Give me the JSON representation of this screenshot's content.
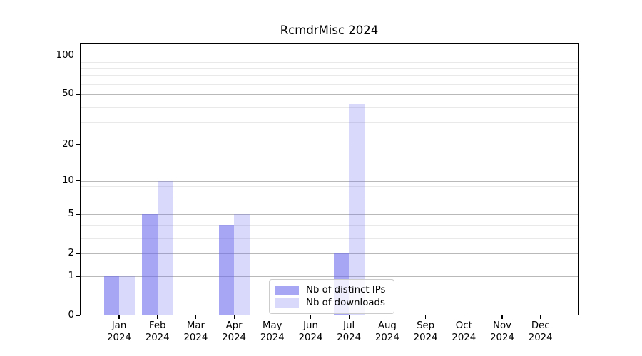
{
  "title": "RcmdrMisc 2024",
  "chart_data": {
    "type": "bar",
    "title": "RcmdrMisc 2024",
    "categories": [
      {
        "month": "Jan",
        "year": "2024"
      },
      {
        "month": "Feb",
        "year": "2024"
      },
      {
        "month": "Mar",
        "year": "2024"
      },
      {
        "month": "Apr",
        "year": "2024"
      },
      {
        "month": "May",
        "year": "2024"
      },
      {
        "month": "Jun",
        "year": "2024"
      },
      {
        "month": "Jul",
        "year": "2024"
      },
      {
        "month": "Aug",
        "year": "2024"
      },
      {
        "month": "Sep",
        "year": "2024"
      },
      {
        "month": "Oct",
        "year": "2024"
      },
      {
        "month": "Nov",
        "year": "2024"
      },
      {
        "month": "Dec",
        "year": "2024"
      }
    ],
    "series": [
      {
        "name": "Nb of distinct IPs",
        "values": [
          1,
          5,
          0,
          4,
          0,
          0,
          2,
          0,
          0,
          0,
          0,
          0
        ],
        "color": "rgba(102,102,238,0.58)"
      },
      {
        "name": "Nb of downloads",
        "values": [
          1,
          10,
          0,
          5,
          0,
          0,
          42,
          0,
          0,
          0,
          0,
          0
        ],
        "color": "rgba(102,102,238,0.25)"
      }
    ],
    "xlabel": "",
    "ylabel": "",
    "yscale": "log1p",
    "ylim": [
      0,
      125
    ],
    "yticks": [
      0,
      1,
      2,
      5,
      10,
      20,
      50,
      100
    ],
    "minor_gridlines": [
      3,
      4,
      6,
      7,
      8,
      9,
      30,
      40,
      60,
      70,
      80,
      90
    ],
    "grid": "horizontal only",
    "legend_position": "lower center",
    "colors": {
      "bar_dark": "rgba(102,102,238,0.58)",
      "bar_light": "rgba(102,102,238,0.25)",
      "major_grid": "#b9b9b9",
      "minor_grid": "#e9e9e9",
      "axis": "#000000",
      "text": "#000000",
      "background": "#ffffff",
      "legend_border": "#cccccc",
      "legend_background": "rgba(255,255,255,0.8)"
    }
  }
}
